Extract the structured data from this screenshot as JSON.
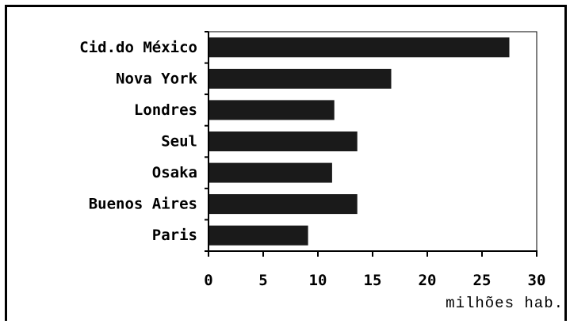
{
  "chart_data": {
    "type": "bar",
    "orientation": "horizontal",
    "title": "",
    "xlabel": "milhões hab.",
    "ylabel": "",
    "categories": [
      "Cid.do México",
      "Nova York",
      "Londres",
      "Seul",
      "Osaka",
      "Buenos Aires",
      "Paris"
    ],
    "values": [
      27.5,
      16.7,
      11.5,
      13.6,
      11.3,
      13.6,
      9.1
    ],
    "xlim": [
      0,
      30
    ],
    "xticks": [
      "0",
      "5",
      "10",
      "15",
      "20",
      "25",
      "30"
    ],
    "bar_color": "#1a1a1a",
    "grid": false,
    "legend": "none"
  }
}
